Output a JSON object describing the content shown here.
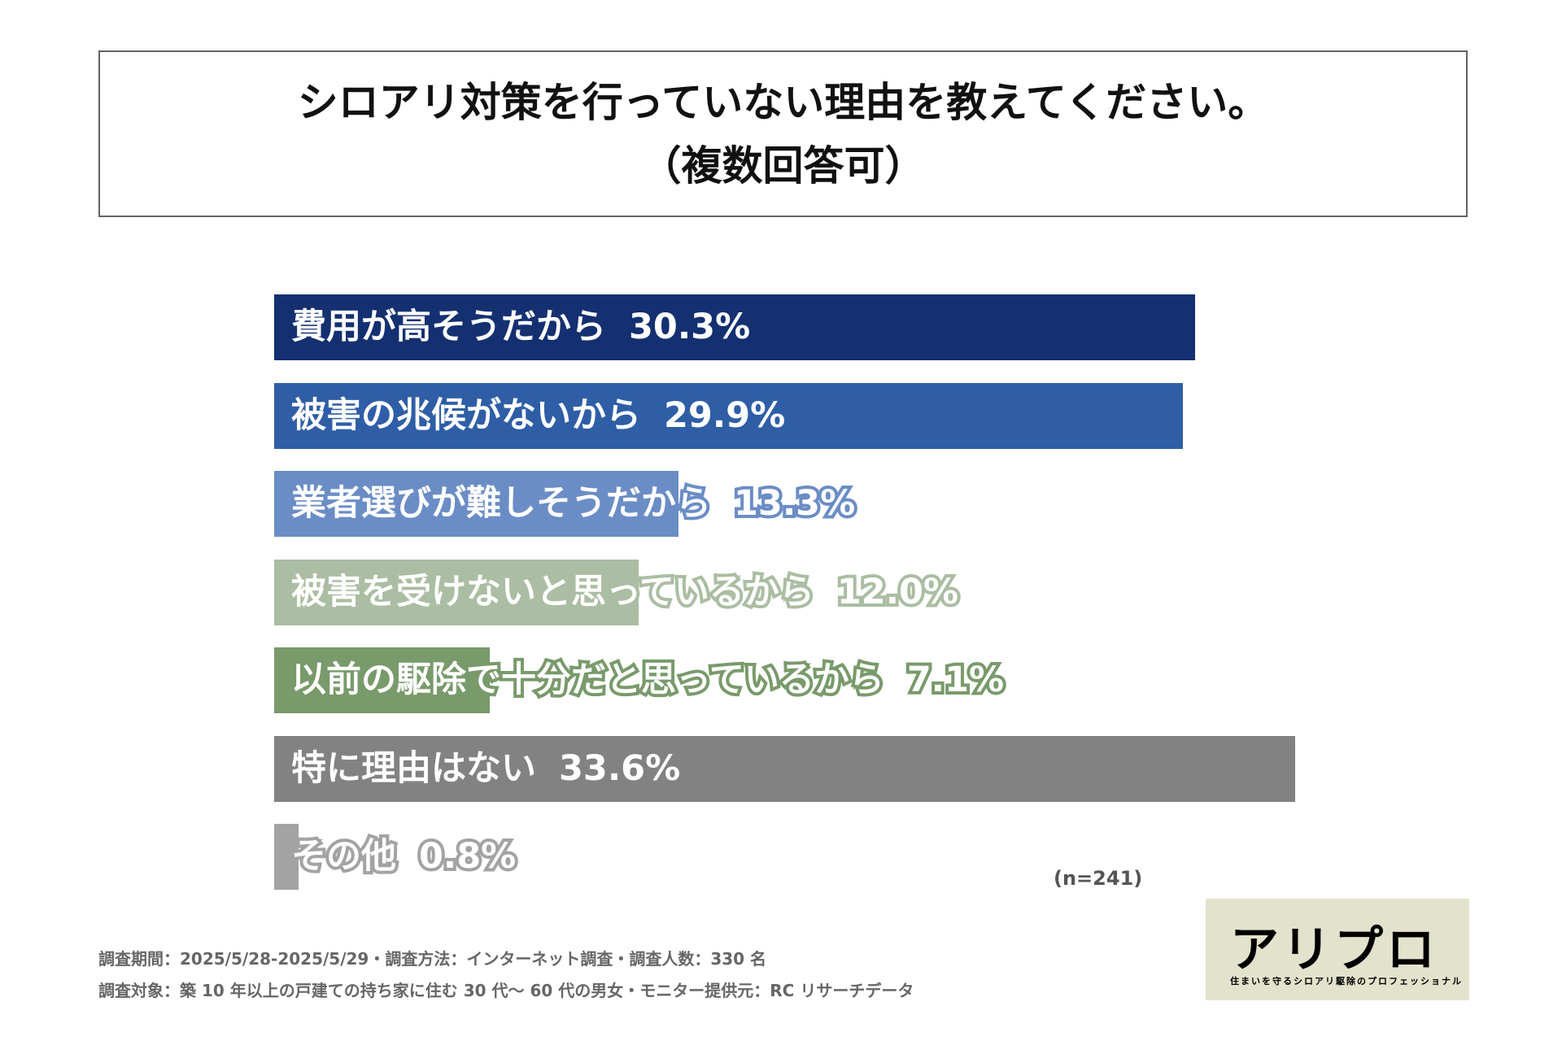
{
  "chart_data": {
    "type": "bar",
    "orientation": "horizontal",
    "title": "シロアリ対策を行っていない理由を教えてください。",
    "subtitle": "（複数回答可）",
    "categories": [
      "費用が高そうだから",
      "被害の兆候がないから",
      "業者選びが難しそうだから",
      "被害を受けないと思っているから",
      "以前の駆除で十分だと思っているから",
      "特に理由はない",
      "その他"
    ],
    "values": [
      30.3,
      29.9,
      13.3,
      12.0,
      7.1,
      33.6,
      0.8
    ],
    "value_labels": [
      "30.3%",
      "29.9%",
      "13.3%",
      "12.0%",
      "7.1%",
      "33.6%",
      "0.8%"
    ],
    "colors": [
      "#143070",
      "#2f5ea6",
      "#6b8dc5",
      "#abbda2",
      "#799a6b",
      "#828282",
      "#a3a3a3"
    ],
    "xlim": [
      0,
      36
    ],
    "grid": false,
    "note": "(n=241)"
  },
  "footer": {
    "line1": "調査期間：2025/5/28-2025/5/29・調査方法：インターネット調査・調査人数：330 名",
    "line2": "調査対象：築 10 年以上の戸建ての持ち家に住む 30 代～ 60 代の男女・モニター提供元：RC リサーチデータ"
  },
  "logo": {
    "name": "アリプロ",
    "tagline": "住まいを守るシロアリ駆除のプロフェッショナル"
  }
}
